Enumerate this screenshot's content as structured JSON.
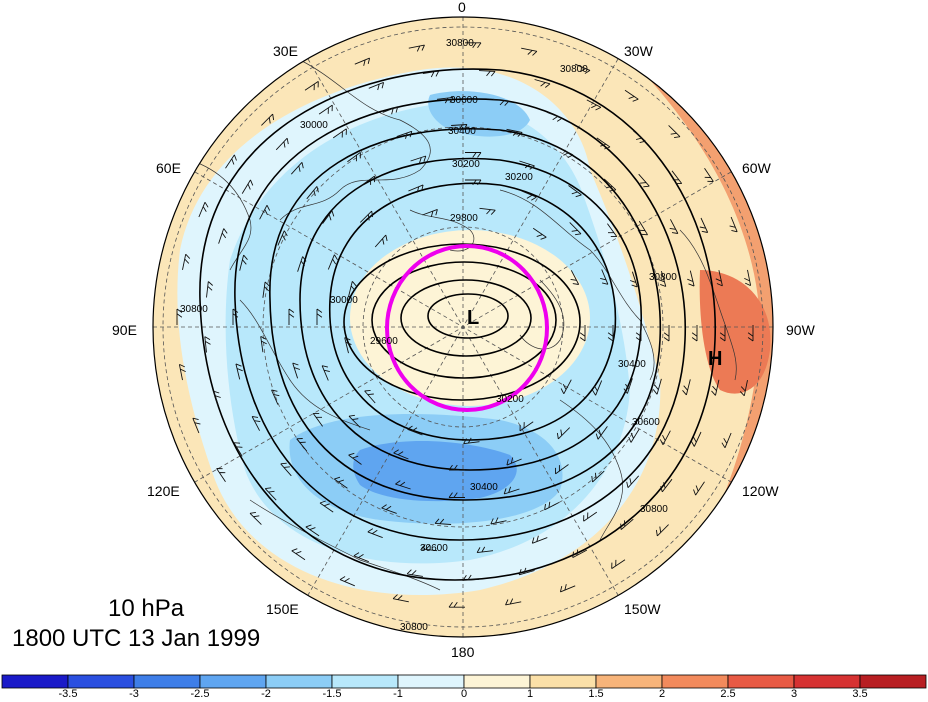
{
  "map": {
    "projection": "north-polar-stereographic",
    "longitude_labels": [
      "0",
      "30W",
      "60W",
      "90W",
      "120W",
      "150W",
      "180",
      "150E",
      "120E",
      "90E",
      "60E",
      "30E"
    ],
    "contour_labels": [
      "30800",
      "30600",
      "30400",
      "30200",
      "30000",
      "29800",
      "29600",
      "30200",
      "30400",
      "30600",
      "30800",
      "30800",
      "30800",
      "30600",
      "30400",
      "30000",
      "30200",
      "30800",
      "30800"
    ],
    "low_marker": "L",
    "high_marker": "H",
    "highlight_circle_color": "#ee00ee"
  },
  "caption": {
    "level": "10 hPa",
    "time": "1800 UTC 13 Jan 1999"
  },
  "colorbar": {
    "tick_labels": [
      "-3.5",
      "-3",
      "-2.5",
      "-2",
      "-1.5",
      "-1",
      "0",
      "1",
      "1.5",
      "2",
      "2.5",
      "3",
      "3.5"
    ],
    "colors": [
      "#1a1ac8",
      "#2a4fe0",
      "#3e7ee8",
      "#5fa5f0",
      "#8ccdf6",
      "#b8e8fb",
      "#dff5fd",
      "#fdf4d6",
      "#fbe0a8",
      "#f7b47a",
      "#f28a5c",
      "#e85a44",
      "#d63232",
      "#b81e22"
    ]
  }
}
